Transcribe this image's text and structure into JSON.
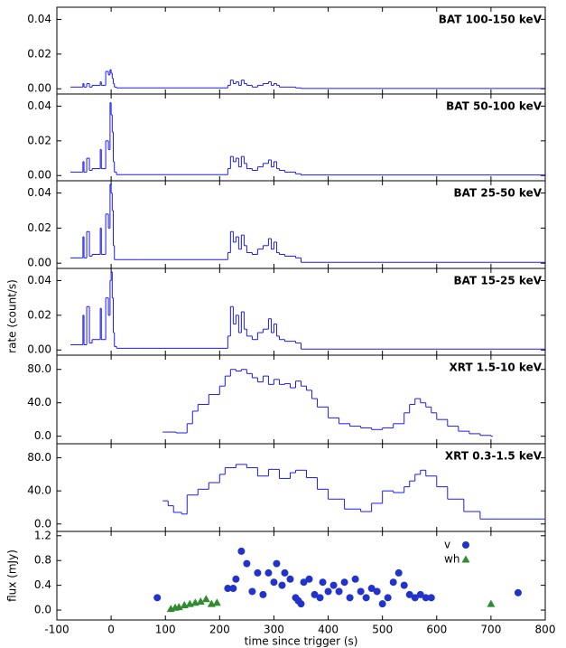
{
  "chart_data": [
    {
      "type": "line",
      "drawstyle": "steps-post",
      "title": "BAT 100-150 keV",
      "color": "#1a1aff",
      "x": [
        -75,
        -55,
        -52,
        -50,
        -45,
        -40,
        -35,
        -20,
        -18,
        -10,
        -5,
        -2,
        0,
        2,
        4,
        6,
        10,
        50,
        215,
        220,
        225,
        230,
        235,
        240,
        245,
        250,
        260,
        270,
        280,
        290,
        295,
        300,
        305,
        310,
        320,
        340,
        350,
        800
      ],
      "values": [
        0.001,
        0.001,
        0.003,
        0.001,
        0.003,
        0.001,
        0.002,
        0.004,
        0.002,
        0.01,
        0.008,
        0.011,
        0.009,
        0.006,
        0.003,
        0.001,
        0.0005,
        0.0005,
        0.002,
        0.005,
        0.003,
        0.004,
        0.002,
        0.005,
        0.003,
        0.002,
        0.001,
        0.002,
        0.003,
        0.004,
        0.002,
        0.003,
        0.002,
        0.001,
        0.001,
        0.0005,
        0.0002,
        0.0002
      ],
      "xlim": [
        -100,
        800
      ],
      "ylim": [
        -0.003,
        0.047
      ],
      "yticks": [
        {
          "value": 0,
          "label": "0.00"
        },
        {
          "value": 0.02,
          "label": "0.02"
        },
        {
          "value": 0.04,
          "label": "0.04"
        }
      ]
    },
    {
      "type": "line",
      "drawstyle": "steps-post",
      "title": "BAT 50-100 keV",
      "color": "#1a1aff",
      "x": [
        -75,
        -55,
        -52,
        -50,
        -45,
        -40,
        -35,
        -20,
        -18,
        -10,
        -5,
        -2,
        0,
        2,
        4,
        6,
        10,
        50,
        215,
        220,
        225,
        230,
        235,
        240,
        245,
        250,
        260,
        270,
        280,
        290,
        295,
        300,
        305,
        310,
        320,
        340,
        350,
        800
      ],
      "values": [
        0.002,
        0.002,
        0.008,
        0.002,
        0.01,
        0.003,
        0.004,
        0.015,
        0.004,
        0.02,
        0.015,
        0.042,
        0.035,
        0.025,
        0.008,
        0.002,
        0.0005,
        0.0005,
        0.004,
        0.011,
        0.008,
        0.01,
        0.005,
        0.011,
        0.007,
        0.004,
        0.003,
        0.005,
        0.007,
        0.009,
        0.005,
        0.008,
        0.004,
        0.003,
        0.002,
        0.001,
        0.0003,
        0.0003
      ],
      "xlim": [
        -100,
        800
      ],
      "ylim": [
        -0.003,
        0.047
      ],
      "yticks": [
        {
          "value": 0,
          "label": "0.00"
        },
        {
          "value": 0.02,
          "label": "0.02"
        },
        {
          "value": 0.04,
          "label": "0.04"
        }
      ]
    },
    {
      "type": "line",
      "drawstyle": "steps-post",
      "title": "BAT 25-50 keV",
      "color": "#1a1aff",
      "x": [
        -75,
        -55,
        -52,
        -50,
        -45,
        -40,
        -35,
        -20,
        -18,
        -10,
        -5,
        -2,
        0,
        2,
        4,
        6,
        10,
        50,
        215,
        220,
        225,
        230,
        235,
        240,
        245,
        250,
        260,
        270,
        280,
        290,
        295,
        300,
        305,
        310,
        320,
        340,
        350,
        800
      ],
      "values": [
        0.003,
        0.003,
        0.015,
        0.003,
        0.018,
        0.004,
        0.005,
        0.02,
        0.005,
        0.028,
        0.02,
        0.045,
        0.04,
        0.03,
        0.01,
        0.002,
        0.002,
        0.002,
        0.006,
        0.018,
        0.012,
        0.015,
        0.008,
        0.016,
        0.01,
        0.006,
        0.005,
        0.008,
        0.01,
        0.014,
        0.008,
        0.012,
        0.006,
        0.005,
        0.004,
        0.003,
        0.0005,
        0.0005
      ],
      "xlim": [
        -100,
        800
      ],
      "ylim": [
        -0.003,
        0.047
      ],
      "yticks": [
        {
          "value": 0,
          "label": "0.00"
        },
        {
          "value": 0.02,
          "label": "0.02"
        },
        {
          "value": 0.04,
          "label": "0.04"
        }
      ]
    },
    {
      "type": "line",
      "drawstyle": "steps-post",
      "title": "BAT 15-25 keV",
      "color": "#1a1aff",
      "ylabel": "rate (count/s)",
      "x": [
        -75,
        -55,
        -52,
        -50,
        -45,
        -40,
        -35,
        -20,
        -18,
        -10,
        -5,
        -2,
        0,
        2,
        4,
        6,
        10,
        50,
        215,
        220,
        225,
        230,
        235,
        240,
        245,
        250,
        260,
        270,
        280,
        290,
        295,
        300,
        305,
        310,
        320,
        340,
        350,
        800
      ],
      "values": [
        0.003,
        0.003,
        0.02,
        0.003,
        0.025,
        0.004,
        0.006,
        0.024,
        0.006,
        0.03,
        0.02,
        0.04,
        0.045,
        0.03,
        0.01,
        0.002,
        0.001,
        0.001,
        0.008,
        0.025,
        0.015,
        0.02,
        0.01,
        0.022,
        0.012,
        0.008,
        0.006,
        0.01,
        0.012,
        0.018,
        0.01,
        0.015,
        0.008,
        0.006,
        0.005,
        0.004,
        0.0005,
        0.0005
      ],
      "xlim": [
        -100,
        800
      ],
      "ylim": [
        -0.003,
        0.047
      ],
      "yticks": [
        {
          "value": 0,
          "label": "0.00"
        },
        {
          "value": 0.02,
          "label": "0.02"
        },
        {
          "value": 0.04,
          "label": "0.04"
        }
      ]
    },
    {
      "type": "line",
      "drawstyle": "steps-post",
      "title": "XRT 1.5-10 keV",
      "color": "#1a1aff",
      "x": [
        95,
        120,
        140,
        150,
        160,
        180,
        200,
        210,
        220,
        230,
        240,
        250,
        260,
        270,
        280,
        290,
        300,
        310,
        320,
        330,
        340,
        350,
        360,
        370,
        380,
        400,
        420,
        440,
        460,
        480,
        500,
        520,
        540,
        550,
        560,
        570,
        580,
        590,
        600,
        620,
        640,
        660,
        680,
        700
      ],
      "values": [
        5,
        4,
        15,
        30,
        38,
        50,
        60,
        72,
        80,
        78,
        80,
        75,
        70,
        65,
        72,
        62,
        68,
        62,
        63,
        58,
        66,
        60,
        55,
        45,
        35,
        22,
        15,
        12,
        10,
        8,
        10,
        15,
        28,
        38,
        45,
        40,
        35,
        28,
        20,
        12,
        6,
        3,
        1,
        0
      ],
      "xlim": [
        -100,
        800
      ],
      "ylim": [
        -9,
        97
      ],
      "yticks": [
        {
          "value": 0,
          "label": "0.0"
        },
        {
          "value": 40,
          "label": "40.0"
        },
        {
          "value": 80,
          "label": "80.0"
        }
      ]
    },
    {
      "type": "line",
      "drawstyle": "steps-post",
      "title": "XRT 0.3-1.5 keV",
      "color": "#1a1aff",
      "x": [
        95,
        105,
        115,
        130,
        140,
        160,
        180,
        200,
        210,
        230,
        250,
        270,
        290,
        310,
        330,
        340,
        360,
        380,
        400,
        430,
        460,
        480,
        500,
        520,
        540,
        550,
        560,
        570,
        580,
        600,
        620,
        650,
        680,
        800
      ],
      "values": [
        28,
        22,
        14,
        12,
        35,
        42,
        50,
        60,
        68,
        72,
        68,
        58,
        66,
        55,
        62,
        65,
        56,
        42,
        30,
        18,
        15,
        25,
        40,
        38,
        45,
        52,
        60,
        65,
        58,
        45,
        30,
        15,
        6,
        5
      ],
      "xlim": [
        -100,
        800
      ],
      "ylim": [
        -9,
        97
      ],
      "yticks": [
        {
          "value": 0,
          "label": "0.0"
        },
        {
          "value": 40,
          "label": "40.0"
        },
        {
          "value": 80,
          "label": "80.0"
        }
      ]
    },
    {
      "type": "scatter",
      "ylabel": "flux (mJy)",
      "xlabel": "time since trigger (s)",
      "legend": "upper right",
      "series": [
        {
          "name": "v",
          "color": "#2233cc",
          "marker": "circle",
          "x": [
            85,
            215,
            225,
            230,
            240,
            250,
            260,
            270,
            280,
            290,
            300,
            305,
            315,
            320,
            330,
            340,
            345,
            350,
            355,
            365,
            375,
            385,
            390,
            400,
            410,
            420,
            430,
            440,
            450,
            460,
            470,
            480,
            490,
            500,
            510,
            520,
            530,
            540,
            550,
            560,
            570,
            580,
            590,
            750
          ],
          "values": [
            0.2,
            0.35,
            0.35,
            0.5,
            0.95,
            0.75,
            0.3,
            0.6,
            0.25,
            0.6,
            0.45,
            0.75,
            0.4,
            0.6,
            0.5,
            0.2,
            0.15,
            0.1,
            0.45,
            0.5,
            0.25,
            0.2,
            0.45,
            0.3,
            0.4,
            0.3,
            0.45,
            0.2,
            0.5,
            0.3,
            0.2,
            0.35,
            0.3,
            0.1,
            0.2,
            0.45,
            0.6,
            0.4,
            0.25,
            0.2,
            0.25,
            0.2,
            0.2,
            0.28
          ]
        },
        {
          "name": "wh",
          "color": "#2e8b2e",
          "marker": "triangle",
          "x": [
            110,
            118,
            125,
            135,
            145,
            155,
            165,
            175,
            185,
            195,
            700
          ],
          "values": [
            0.02,
            0.04,
            0.05,
            0.08,
            0.1,
            0.12,
            0.14,
            0.18,
            0.1,
            0.12,
            0.1
          ]
        }
      ],
      "xlim": [
        -100,
        800
      ],
      "ylim": [
        -0.16,
        1.27
      ],
      "xticks": [
        -100,
        0,
        100,
        200,
        300,
        400,
        500,
        600,
        700,
        800
      ],
      "yticks": [
        {
          "value": 0,
          "label": "0.0"
        },
        {
          "value": 0.4,
          "label": "0.4"
        },
        {
          "value": 0.8,
          "label": "0.8"
        },
        {
          "value": 1.2,
          "label": "1.2"
        }
      ]
    }
  ]
}
